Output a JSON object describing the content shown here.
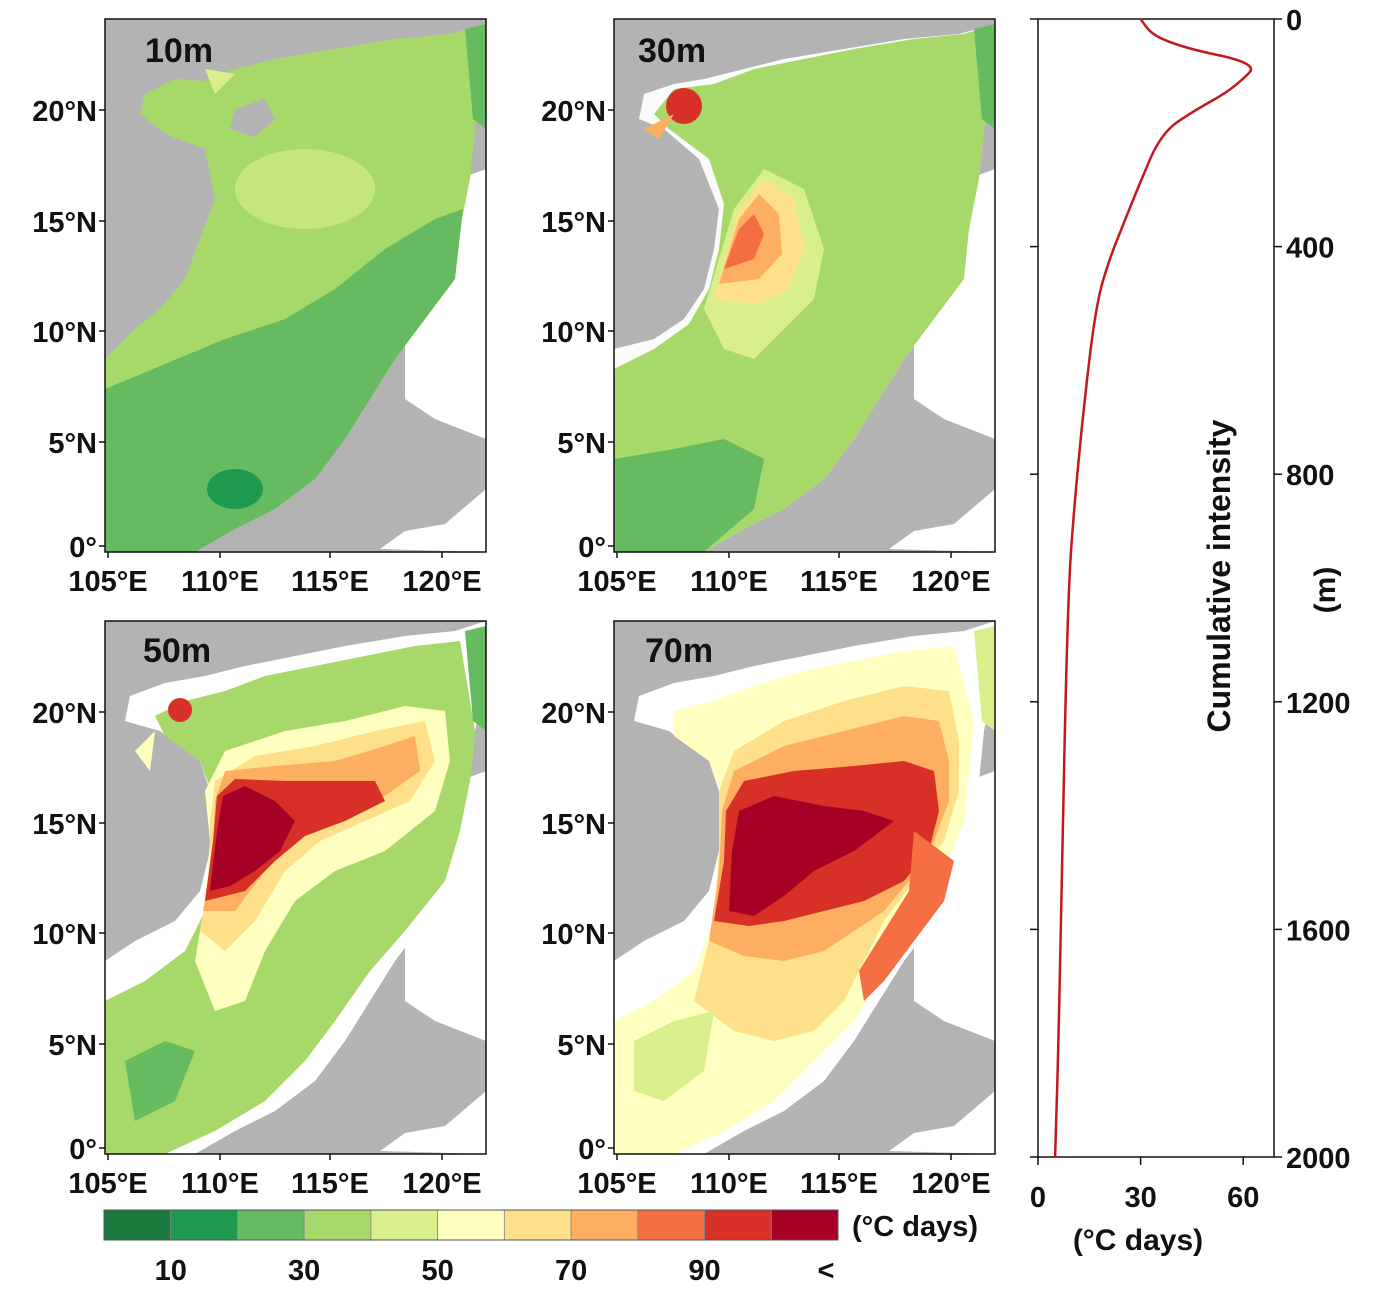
{
  "maps": [
    {
      "depth_label": "10m",
      "lat_ticks": [
        "20°N",
        "15°N",
        "10°N",
        "5°N",
        "0°"
      ],
      "lon_ticks": [
        "105°E",
        "110°E",
        "115°E",
        "120°E"
      ]
    },
    {
      "depth_label": "30m",
      "lat_ticks": [
        "20°N",
        "15°N",
        "10°N",
        "5°N",
        "0°"
      ],
      "lon_ticks": [
        "105°E",
        "110°E",
        "115°E",
        "120°E"
      ]
    },
    {
      "depth_label": "50m",
      "lat_ticks": [
        "20°N",
        "15°N",
        "10°N",
        "5°N",
        "0°"
      ],
      "lon_ticks": [
        "105°E",
        "110°E",
        "115°E",
        "120°E"
      ]
    },
    {
      "depth_label": "70m",
      "lat_ticks": [
        "20°N",
        "15°N",
        "10°N",
        "5°N",
        "0°"
      ],
      "lon_ticks": [
        "105°E",
        "110°E",
        "115°E",
        "120°E"
      ]
    }
  ],
  "colorbar": {
    "unit": "(°C days)",
    "tick_labels": [
      "10",
      "30",
      "50",
      "70",
      "90",
      "<"
    ],
    "colors": [
      "#1a7a3e",
      "#1e9a50",
      "#66bb61",
      "#a6d96a",
      "#d9ef8b",
      "#ffffbf",
      "#fee08b",
      "#fdae61",
      "#f46d43",
      "#d73027",
      "#a50026"
    ]
  },
  "land_color": "#b3b3b3",
  "chart_data": {
    "type": "line",
    "xlabel": "(°C days)",
    "ylabel": "(m)",
    "series_label": "Cumulative intensity",
    "x_ticks": [
      0,
      30,
      60
    ],
    "y_ticks": [
      0,
      400,
      800,
      1200,
      1600,
      2000
    ],
    "xlim": [
      0,
      69
    ],
    "ylim": [
      0,
      2000
    ],
    "y_inverted": true,
    "line_color": "#c0191e",
    "x": [
      30,
      33,
      38,
      46,
      58,
      63,
      61,
      55,
      46,
      36,
      29,
      25,
      21,
      17,
      13,
      10,
      9,
      8,
      7,
      6,
      5
    ],
    "y": [
      0,
      25,
      40,
      55,
      70,
      85,
      100,
      130,
      160,
      200,
      300,
      360,
      420,
      500,
      700,
      900,
      1000,
      1200,
      1500,
      1800,
      2000
    ]
  }
}
